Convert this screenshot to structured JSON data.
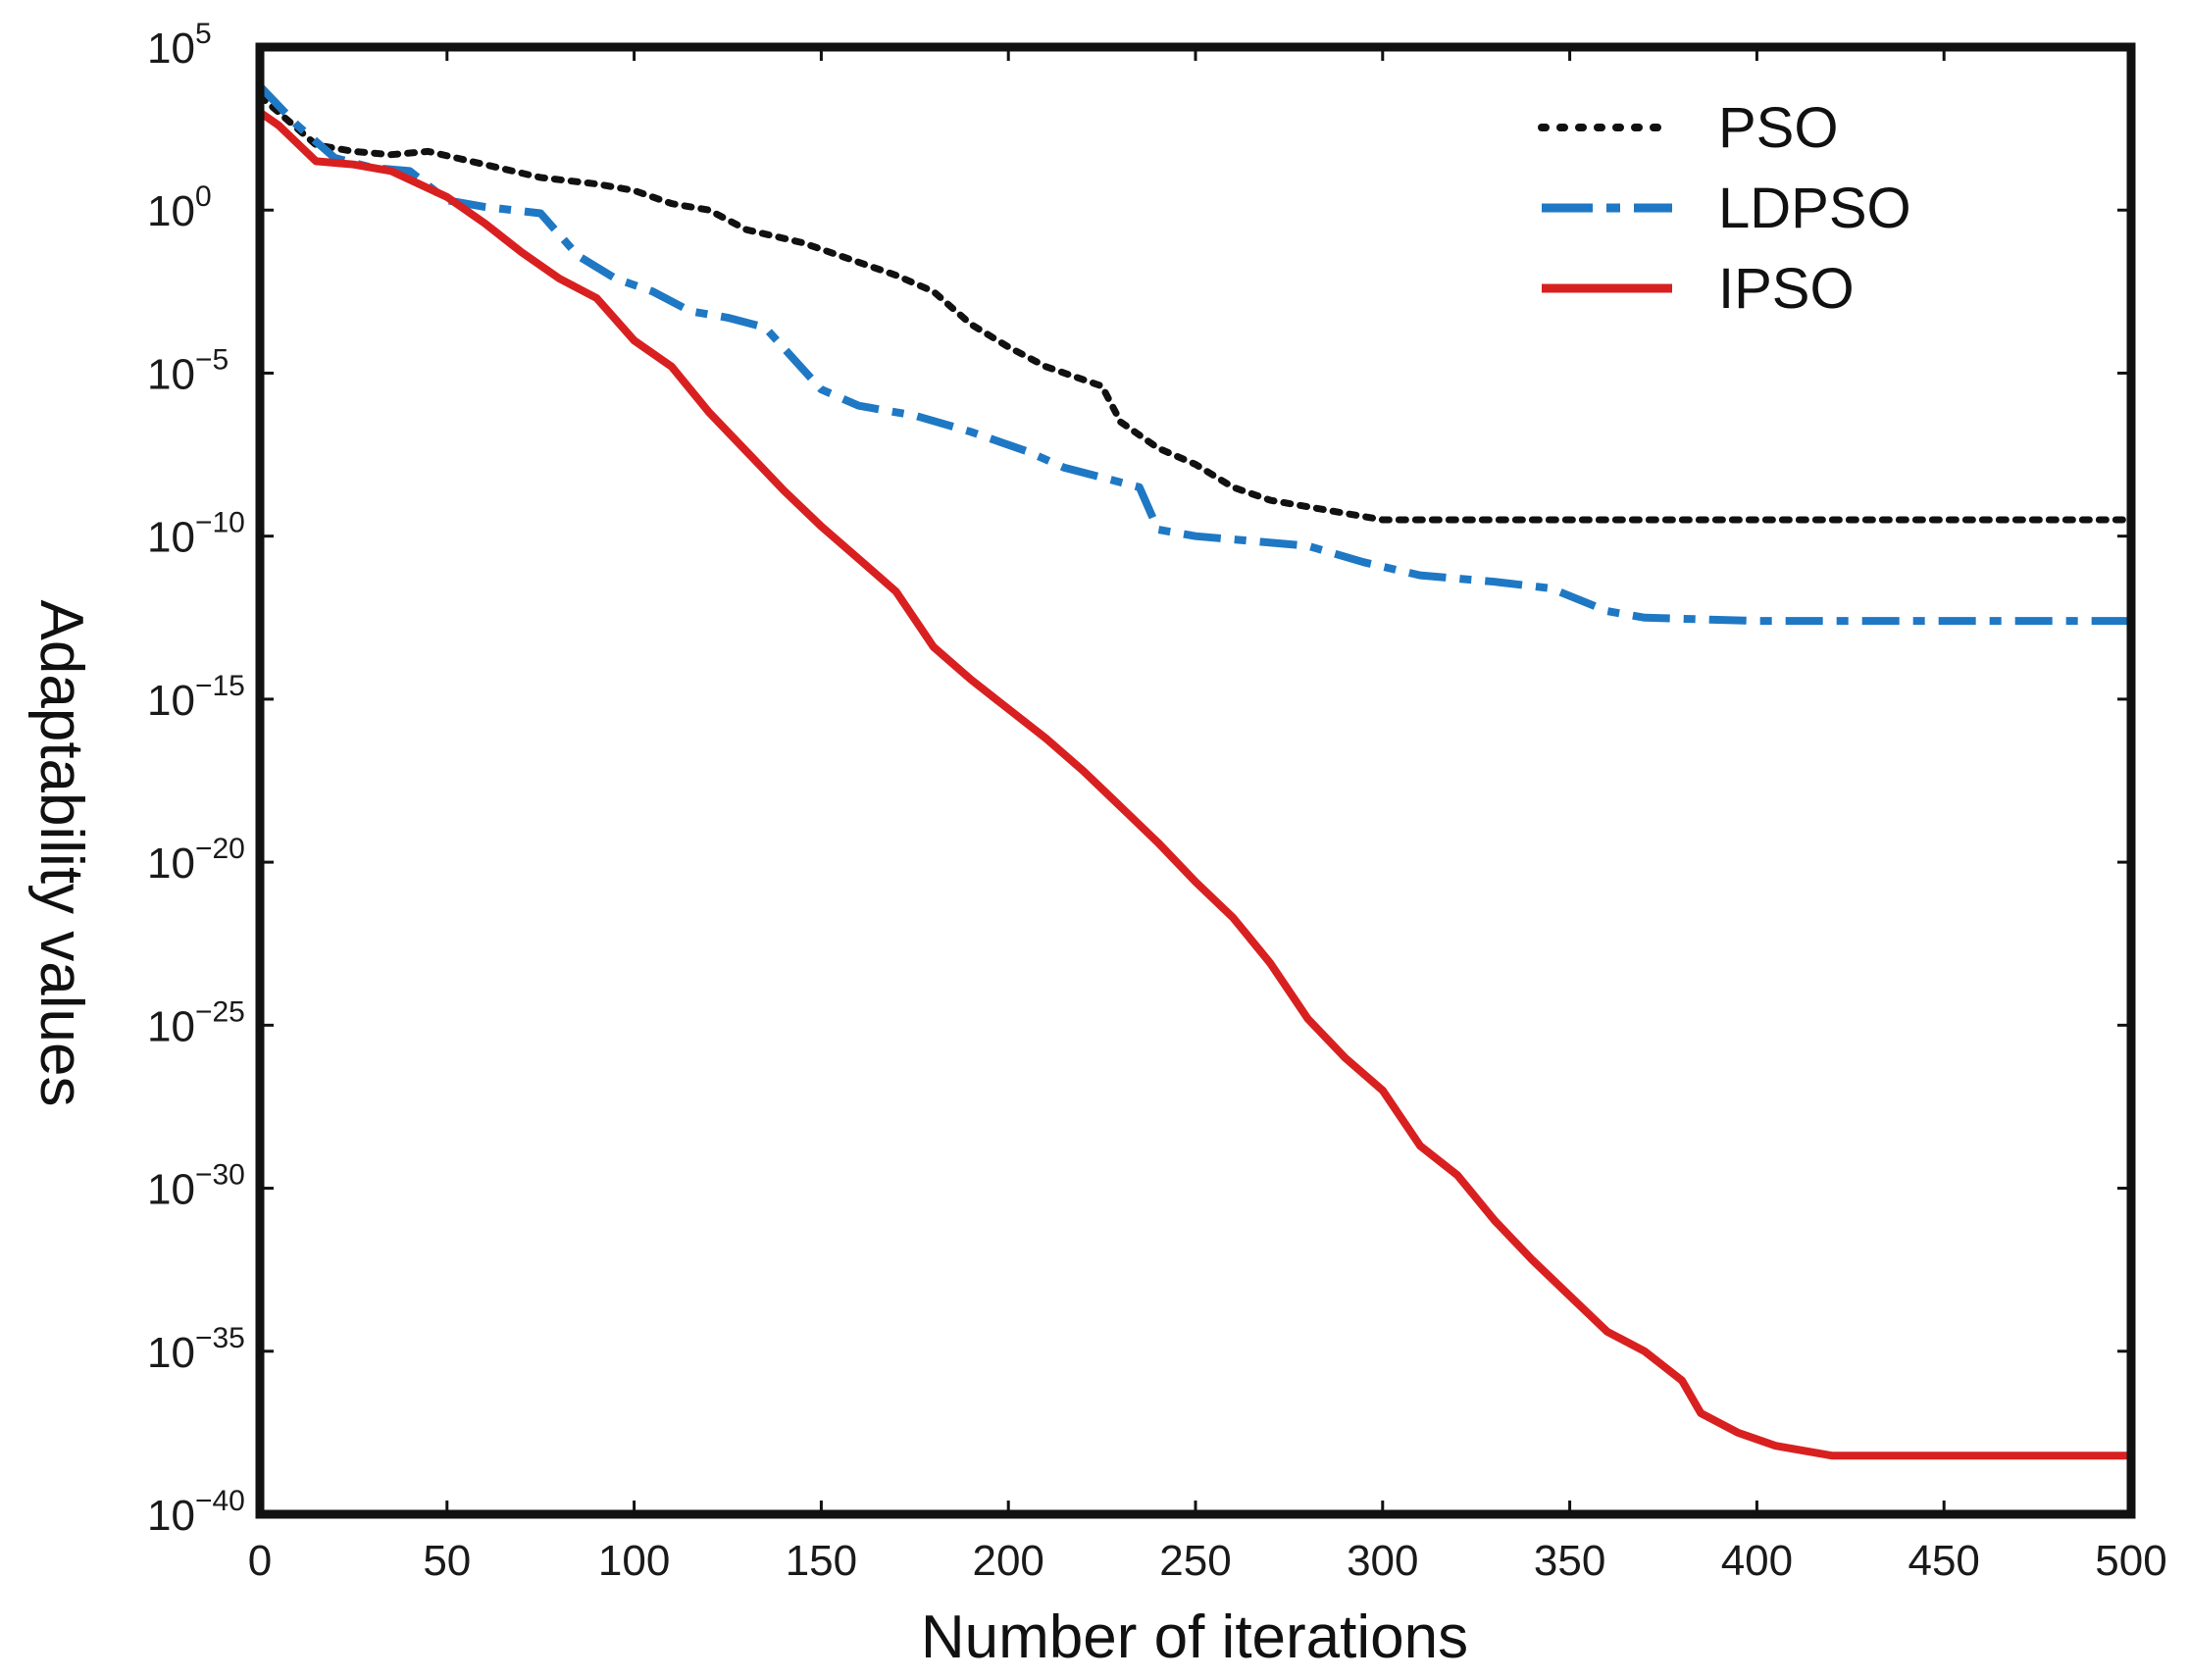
{
  "chart_data": {
    "type": "line",
    "title": "",
    "xlabel": "Number of iterations",
    "ylabel": "Adaptability values",
    "yscale": "log",
    "xlim": [
      0,
      500
    ],
    "ylim_exponent": [
      -40,
      5
    ],
    "x_ticks": [
      "0",
      "50",
      "100",
      "150",
      "200",
      "250",
      "300",
      "350",
      "400",
      "450",
      "500"
    ],
    "y_ticks": [
      {
        "base": "10",
        "exp": "5"
      },
      {
        "base": "10",
        "exp": "0"
      },
      {
        "base": "10",
        "exp": "−5"
      },
      {
        "base": "10",
        "exp": "−10"
      },
      {
        "base": "10",
        "exp": "−15"
      },
      {
        "base": "10",
        "exp": "−20"
      },
      {
        "base": "10",
        "exp": "−25"
      },
      {
        "base": "10",
        "exp": "−30"
      },
      {
        "base": "10",
        "exp": "−35"
      },
      {
        "base": "10",
        "exp": "−40"
      }
    ],
    "grid": false,
    "legend_position": "top-right",
    "series": [
      {
        "name": "PSO",
        "color": "#111111",
        "style": "dotted",
        "points": [
          [
            0,
            3.5
          ],
          [
            5,
            3.0
          ],
          [
            15,
            2.0
          ],
          [
            25,
            1.8
          ],
          [
            35,
            1.7
          ],
          [
            45,
            1.8
          ],
          [
            60,
            1.4
          ],
          [
            75,
            1.0
          ],
          [
            90,
            0.8
          ],
          [
            100,
            0.6
          ],
          [
            110,
            0.2
          ],
          [
            120,
            0.0
          ],
          [
            130,
            -0.6
          ],
          [
            145,
            -1.0
          ],
          [
            160,
            -1.6
          ],
          [
            170,
            -2.0
          ],
          [
            180,
            -2.5
          ],
          [
            190,
            -3.5
          ],
          [
            200,
            -4.2
          ],
          [
            210,
            -4.8
          ],
          [
            220,
            -5.2
          ],
          [
            225,
            -5.4
          ],
          [
            230,
            -6.5
          ],
          [
            240,
            -7.3
          ],
          [
            250,
            -7.8
          ],
          [
            260,
            -8.5
          ],
          [
            270,
            -8.9
          ],
          [
            280,
            -9.1
          ],
          [
            290,
            -9.3
          ],
          [
            300,
            -9.5
          ],
          [
            320,
            -9.5
          ],
          [
            400,
            -9.5
          ],
          [
            500,
            -9.5
          ]
        ]
      },
      {
        "name": "LDPSO",
        "color": "#1f78c4",
        "style": "dashdot",
        "points": [
          [
            0,
            3.8
          ],
          [
            10,
            2.6
          ],
          [
            20,
            1.6
          ],
          [
            30,
            1.3
          ],
          [
            40,
            1.2
          ],
          [
            50,
            0.3
          ],
          [
            60,
            0.1
          ],
          [
            75,
            -0.1
          ],
          [
            85,
            -1.4
          ],
          [
            95,
            -2.1
          ],
          [
            105,
            -2.5
          ],
          [
            115,
            -3.1
          ],
          [
            125,
            -3.3
          ],
          [
            135,
            -3.6
          ],
          [
            150,
            -5.5
          ],
          [
            160,
            -6.0
          ],
          [
            175,
            -6.3
          ],
          [
            190,
            -6.8
          ],
          [
            205,
            -7.4
          ],
          [
            215,
            -7.9
          ],
          [
            225,
            -8.2
          ],
          [
            235,
            -8.5
          ],
          [
            240,
            -9.8
          ],
          [
            250,
            -10.0
          ],
          [
            260,
            -10.1
          ],
          [
            280,
            -10.3
          ],
          [
            295,
            -10.8
          ],
          [
            310,
            -11.2
          ],
          [
            330,
            -11.4
          ],
          [
            345,
            -11.6
          ],
          [
            360,
            -12.3
          ],
          [
            370,
            -12.5
          ],
          [
            400,
            -12.6
          ],
          [
            450,
            -12.6
          ],
          [
            500,
            -12.6
          ]
        ]
      },
      {
        "name": "IPSO",
        "color": "#d92020",
        "style": "solid",
        "points": [
          [
            0,
            3.0
          ],
          [
            5,
            2.6
          ],
          [
            15,
            1.5
          ],
          [
            25,
            1.4
          ],
          [
            35,
            1.2
          ],
          [
            50,
            0.4
          ],
          [
            60,
            -0.4
          ],
          [
            70,
            -1.3
          ],
          [
            80,
            -2.1
          ],
          [
            90,
            -2.7
          ],
          [
            100,
            -4.0
          ],
          [
            110,
            -4.8
          ],
          [
            120,
            -6.2
          ],
          [
            130,
            -7.4
          ],
          [
            140,
            -8.6
          ],
          [
            150,
            -9.7
          ],
          [
            160,
            -10.7
          ],
          [
            170,
            -11.7
          ],
          [
            180,
            -13.4
          ],
          [
            190,
            -14.4
          ],
          [
            200,
            -15.3
          ],
          [
            210,
            -16.2
          ],
          [
            220,
            -17.2
          ],
          [
            230,
            -18.3
          ],
          [
            240,
            -19.4
          ],
          [
            250,
            -20.6
          ],
          [
            260,
            -21.7
          ],
          [
            270,
            -23.1
          ],
          [
            280,
            -24.8
          ],
          [
            290,
            -26.0
          ],
          [
            300,
            -27.0
          ],
          [
            310,
            -28.7
          ],
          [
            320,
            -29.6
          ],
          [
            330,
            -31.0
          ],
          [
            340,
            -32.2
          ],
          [
            350,
            -33.3
          ],
          [
            360,
            -34.4
          ],
          [
            370,
            -35.0
          ],
          [
            380,
            -35.9
          ],
          [
            385,
            -36.9
          ],
          [
            395,
            -37.5
          ],
          [
            405,
            -37.9
          ],
          [
            420,
            -38.2
          ],
          [
            450,
            -38.2
          ],
          [
            500,
            -38.2
          ]
        ]
      }
    ]
  }
}
